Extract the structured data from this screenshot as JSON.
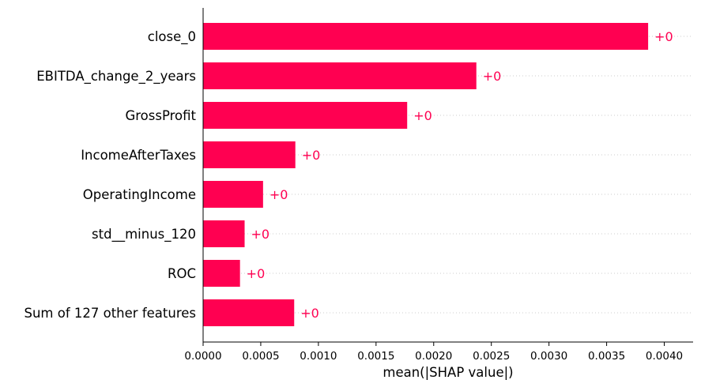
{
  "chart_data": {
    "type": "bar",
    "orientation": "horizontal",
    "categories": [
      "close_0",
      "EBITDA_change_2_years",
      "GrossProfit",
      "IncomeAfterTaxes",
      "OperatingIncome",
      "std__minus_120",
      "ROC",
      "Sum of 127 other features"
    ],
    "values": [
      0.00386,
      0.00237,
      0.00177,
      0.0008,
      0.00052,
      0.00036,
      0.00032,
      0.00079
    ],
    "value_labels": [
      "+0",
      "+0",
      "+0",
      "+0",
      "+0",
      "+0",
      "+0",
      "+0"
    ],
    "xlabel": "mean(|SHAP value|)",
    "xlim": [
      0,
      0.00425
    ],
    "xticks": [
      "0.0000",
      "0.0005",
      "0.0010",
      "0.0015",
      "0.0020",
      "0.0025",
      "0.0030",
      "0.0035",
      "0.0040"
    ],
    "xtick_values": [
      0,
      0.0005,
      0.001,
      0.0015,
      0.002,
      0.0025,
      0.003,
      0.0035,
      0.004
    ],
    "grid": "horizontal dotted",
    "colors": {
      "bar": "#ff0051",
      "value_label": "#ff0051",
      "grid": "#cccccc",
      "axis": "#000000"
    }
  }
}
